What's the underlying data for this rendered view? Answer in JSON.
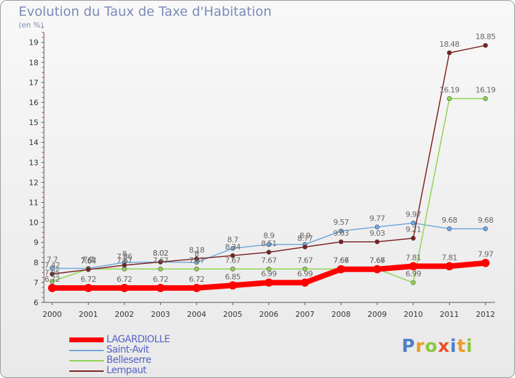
{
  "title": "Evolution du Taux de Taxe d'Habitation",
  "unit_label": "(en %)",
  "brand": {
    "letters": [
      {
        "char": "P",
        "color": "#4a7fc9"
      },
      {
        "char": "r",
        "color": "#f29a1f"
      },
      {
        "char": "o",
        "color": "#8cc63f"
      },
      {
        "char": "x",
        "color": "#e8502a"
      },
      {
        "char": "i",
        "color": "#4a7fc9"
      },
      {
        "char": "t",
        "color": "#f29a1f"
      },
      {
        "char": "i",
        "color": "#8cc63f"
      }
    ]
  },
  "chart_data": {
    "type": "line",
    "title": "Evolution du Taux de Taxe d'Habitation",
    "ylabel": "(en %)",
    "xlabel": "",
    "x": [
      "2000",
      "2001",
      "2002",
      "2003",
      "2004",
      "2005",
      "2006",
      "2007",
      "2008",
      "2009",
      "2010",
      "2011",
      "2012"
    ],
    "ylim": [
      6,
      19.5
    ],
    "yticks": [
      6,
      7,
      8,
      9,
      10,
      11,
      12,
      13,
      14,
      15,
      16,
      17,
      18,
      19
    ],
    "grid": false,
    "legend": "bottom-left",
    "series": [
      {
        "name": "LAGARDIOLLE",
        "color": "#ff0000",
        "values": [
          6.72,
          6.72,
          6.72,
          6.72,
          6.72,
          6.85,
          6.99,
          6.99,
          7.66,
          7.66,
          7.81,
          7.81,
          7.97
        ],
        "labels": [
          "6.72",
          "6.72",
          "6.72",
          "6.72",
          "6.72",
          "6.85",
          "6.99",
          "6.99",
          "7.66",
          "7.66",
          "7.81",
          "7.81",
          "7.97"
        ]
      },
      {
        "name": "Saint-Avit",
        "color": "#6fa8dc",
        "values": [
          7.7,
          7.7,
          8.0,
          8.02,
          8.0,
          8.7,
          8.9,
          8.9,
          9.57,
          9.77,
          9.97,
          9.68,
          9.68
        ],
        "labels": [
          "7.7",
          "7.7",
          "8",
          "8.02",
          "8",
          "8.7",
          "8.9",
          "8.9",
          "9.57",
          "9.77",
          "9.97",
          "9.68",
          "9.68"
        ]
      },
      {
        "name": "Belleserre",
        "color": "#8fd14f",
        "values": [
          7.05,
          7.67,
          7.67,
          7.67,
          7.67,
          7.67,
          7.67,
          7.67,
          7.67,
          7.67,
          6.99,
          16.19,
          16.19
        ],
        "labels": [
          "7.05",
          "7.67",
          "7.67",
          "7.67",
          "7.67",
          "7.67",
          "7.67",
          "7.67",
          "7.67",
          "7.67",
          "6.99",
          "16.19",
          "16.19"
        ]
      },
      {
        "name": "Lempaut",
        "color": "#7a2020",
        "values": [
          7.42,
          7.64,
          7.86,
          8.02,
          8.18,
          8.34,
          8.51,
          8.77,
          9.03,
          9.03,
          9.21,
          18.48,
          18.85
        ],
        "labels": [
          "7.42",
          "7.64",
          "7.86",
          "8.02",
          "8.18",
          "8.34",
          "8.51",
          "8.77",
          "9.03",
          "9.03",
          "9.21",
          "18.48",
          "18.85"
        ]
      }
    ]
  }
}
